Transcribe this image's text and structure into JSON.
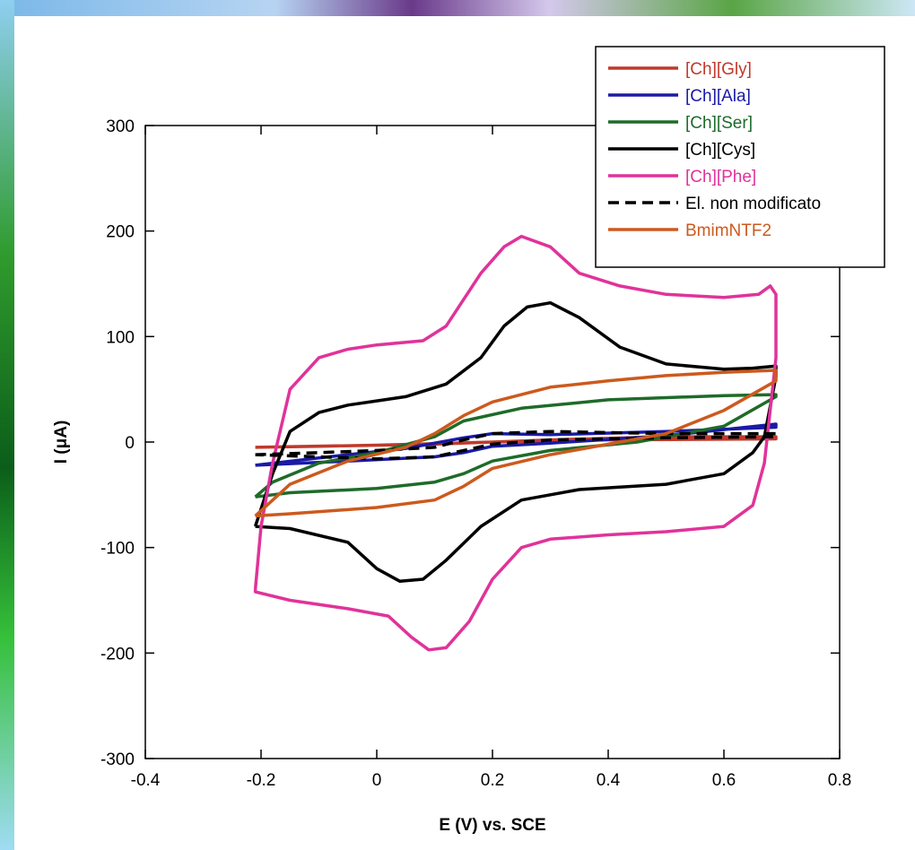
{
  "chart_data": {
    "type": "line",
    "title": "",
    "xlabel": "E (V) vs. SCE",
    "ylabel": "I (μA)",
    "xlim": [
      -0.4,
      0.8
    ],
    "ylim": [
      -300,
      300
    ],
    "xticks": [
      "-0.4",
      "-0.2",
      "0",
      "0.2",
      "0.4",
      "0.6",
      "0.8"
    ],
    "yticks": [
      "300",
      "200",
      "100",
      "0",
      "-100",
      "-200",
      "-300"
    ],
    "grid": false,
    "legend_position": "top-right",
    "series": [
      {
        "name": "[Ch][Gly]",
        "color": "#c0392b",
        "label_color": "#c0392b",
        "dash": "solid",
        "points": [
          [
            -0.21,
            -5
          ],
          [
            0.0,
            -3
          ],
          [
            0.2,
            0
          ],
          [
            0.4,
            2
          ],
          [
            0.69,
            3
          ],
          [
            0.69,
            5
          ],
          [
            0.5,
            5
          ],
          [
            0.3,
            2
          ],
          [
            0.1,
            -2
          ],
          [
            -0.1,
            -4
          ],
          [
            -0.21,
            -5
          ]
        ]
      },
      {
        "name": "[Ch][Ala]",
        "color": "#1a1aa6",
        "label_color": "#1a1aa6",
        "dash": "solid",
        "points": [
          [
            -0.21,
            -22
          ],
          [
            -0.05,
            -18
          ],
          [
            0.1,
            -14
          ],
          [
            0.15,
            -10
          ],
          [
            0.2,
            -4
          ],
          [
            0.3,
            -1
          ],
          [
            0.5,
            6
          ],
          [
            0.69,
            17
          ],
          [
            0.69,
            14
          ],
          [
            0.5,
            10
          ],
          [
            0.3,
            7
          ],
          [
            0.2,
            8
          ],
          [
            0.15,
            4
          ],
          [
            0.05,
            -6
          ],
          [
            -0.1,
            -15
          ],
          [
            -0.21,
            -22
          ]
        ]
      },
      {
        "name": "[Ch][Ser]",
        "color": "#1e6b2a",
        "label_color": "#1e6b2a",
        "dash": "solid",
        "points": [
          [
            -0.21,
            -52
          ],
          [
            -0.15,
            -48
          ],
          [
            0.0,
            -44
          ],
          [
            0.1,
            -38
          ],
          [
            0.15,
            -30
          ],
          [
            0.2,
            -18
          ],
          [
            0.3,
            -8
          ],
          [
            0.45,
            0
          ],
          [
            0.6,
            15
          ],
          [
            0.69,
            43
          ],
          [
            0.69,
            45
          ],
          [
            0.6,
            44
          ],
          [
            0.4,
            40
          ],
          [
            0.25,
            32
          ],
          [
            0.15,
            20
          ],
          [
            0.1,
            5
          ],
          [
            0.0,
            -10
          ],
          [
            -0.1,
            -20
          ],
          [
            -0.18,
            -38
          ],
          [
            -0.21,
            -52
          ]
        ]
      },
      {
        "name": "[Ch][Cys]",
        "color": "#000000",
        "label_color": "#000000",
        "dash": "solid",
        "points": [
          [
            -0.21,
            -80
          ],
          [
            -0.15,
            -82
          ],
          [
            -0.05,
            -95
          ],
          [
            0.0,
            -120
          ],
          [
            0.04,
            -132
          ],
          [
            0.08,
            -130
          ],
          [
            0.12,
            -112
          ],
          [
            0.18,
            -80
          ],
          [
            0.25,
            -55
          ],
          [
            0.35,
            -45
          ],
          [
            0.5,
            -40
          ],
          [
            0.6,
            -30
          ],
          [
            0.65,
            -10
          ],
          [
            0.67,
            5
          ],
          [
            0.69,
            62
          ],
          [
            0.69,
            72
          ],
          [
            0.65,
            70
          ],
          [
            0.6,
            69
          ],
          [
            0.5,
            74
          ],
          [
            0.42,
            90
          ],
          [
            0.35,
            118
          ],
          [
            0.3,
            132
          ],
          [
            0.26,
            128
          ],
          [
            0.22,
            110
          ],
          [
            0.18,
            80
          ],
          [
            0.12,
            55
          ],
          [
            0.05,
            43
          ],
          [
            0.0,
            39
          ],
          [
            -0.05,
            35
          ],
          [
            -0.1,
            28
          ],
          [
            -0.15,
            10
          ],
          [
            -0.18,
            -30
          ],
          [
            -0.21,
            -80
          ]
        ]
      },
      {
        "name": "[Ch][Phe]",
        "color": "#e0339a",
        "label_color": "#e0339a",
        "dash": "solid",
        "points": [
          [
            -0.21,
            -140
          ],
          [
            -0.21,
            -142
          ],
          [
            -0.15,
            -150
          ],
          [
            -0.05,
            -158
          ],
          [
            0.02,
            -165
          ],
          [
            0.06,
            -185
          ],
          [
            0.09,
            -197
          ],
          [
            0.12,
            -195
          ],
          [
            0.16,
            -170
          ],
          [
            0.2,
            -130
          ],
          [
            0.25,
            -100
          ],
          [
            0.3,
            -92
          ],
          [
            0.4,
            -88
          ],
          [
            0.5,
            -85
          ],
          [
            0.6,
            -80
          ],
          [
            0.65,
            -60
          ],
          [
            0.67,
            -20
          ],
          [
            0.69,
            80
          ],
          [
            0.69,
            140
          ],
          [
            0.68,
            148
          ],
          [
            0.66,
            140
          ],
          [
            0.6,
            137
          ],
          [
            0.5,
            140
          ],
          [
            0.42,
            148
          ],
          [
            0.35,
            160
          ],
          [
            0.3,
            185
          ],
          [
            0.25,
            195
          ],
          [
            0.22,
            185
          ],
          [
            0.18,
            160
          ],
          [
            0.12,
            110
          ],
          [
            0.08,
            96
          ],
          [
            0.0,
            92
          ],
          [
            -0.05,
            88
          ],
          [
            -0.1,
            80
          ],
          [
            -0.15,
            50
          ],
          [
            -0.18,
            -20
          ],
          [
            -0.2,
            -80
          ],
          [
            -0.21,
            -140
          ]
        ]
      },
      {
        "name": "El. non modificato",
        "color": "#000000",
        "label_color": "#000000",
        "dash": "dashed",
        "points": [
          [
            -0.21,
            -12
          ],
          [
            -0.1,
            -10
          ],
          [
            0.0,
            -8
          ],
          [
            0.1,
            -5
          ],
          [
            0.15,
            2
          ],
          [
            0.2,
            8
          ],
          [
            0.3,
            10
          ],
          [
            0.5,
            8
          ],
          [
            0.69,
            8
          ],
          [
            0.69,
            5
          ],
          [
            0.5,
            4
          ],
          [
            0.3,
            2
          ],
          [
            0.2,
            -2
          ],
          [
            0.15,
            -8
          ],
          [
            0.1,
            -14
          ],
          [
            0.0,
            -16
          ],
          [
            -0.1,
            -14
          ],
          [
            -0.21,
            -12
          ]
        ]
      },
      {
        "name": "BmimNTF2",
        "color": "#cc5a1e",
        "label_color": "#cc5a1e",
        "dash": "solid",
        "points": [
          [
            -0.21,
            -70
          ],
          [
            -0.15,
            -68
          ],
          [
            0.0,
            -62
          ],
          [
            0.1,
            -55
          ],
          [
            0.15,
            -42
          ],
          [
            0.2,
            -25
          ],
          [
            0.3,
            -12
          ],
          [
            0.4,
            -2
          ],
          [
            0.5,
            8
          ],
          [
            0.6,
            30
          ],
          [
            0.69,
            58
          ],
          [
            0.69,
            68
          ],
          [
            0.6,
            66
          ],
          [
            0.5,
            63
          ],
          [
            0.4,
            58
          ],
          [
            0.3,
            52
          ],
          [
            0.2,
            38
          ],
          [
            0.15,
            25
          ],
          [
            0.1,
            8
          ],
          [
            0.05,
            -5
          ],
          [
            -0.05,
            -18
          ],
          [
            -0.15,
            -40
          ],
          [
            -0.21,
            -70
          ]
        ]
      }
    ]
  }
}
